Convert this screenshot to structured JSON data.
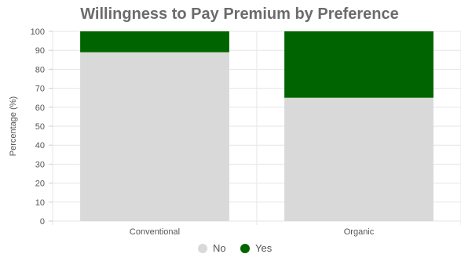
{
  "chart_data": {
    "type": "bar",
    "stacked": true,
    "title": "Willingness to Pay Premium by Preference",
    "xlabel": "",
    "ylabel": "Percentage (%)",
    "categories": [
      "Conventional",
      "Organic"
    ],
    "series": [
      {
        "name": "No",
        "values": [
          89,
          65
        ],
        "color": "#d9d9d9"
      },
      {
        "name": "Yes",
        "values": [
          11,
          35
        ],
        "color": "#006400"
      }
    ],
    "ylim": [
      0,
      100
    ],
    "yticks": [
      0,
      10,
      20,
      30,
      40,
      50,
      60,
      70,
      80,
      90,
      100
    ],
    "grid": true,
    "legend_position": "bottom"
  }
}
